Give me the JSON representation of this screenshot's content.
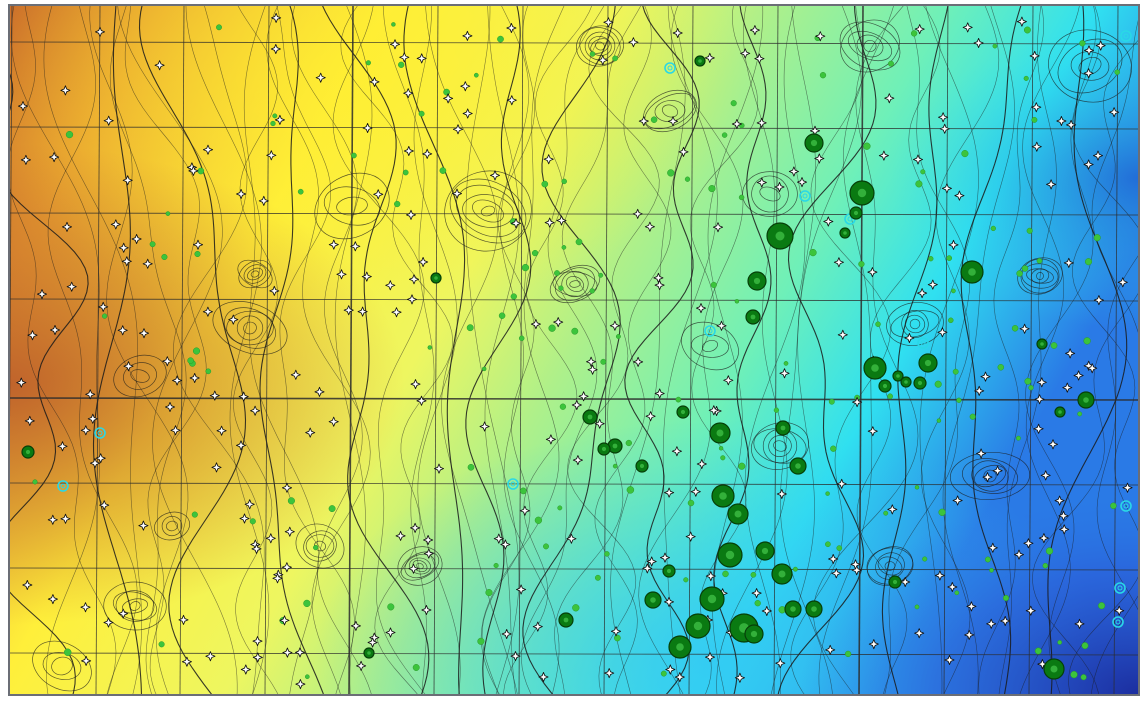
{
  "map": {
    "kind": "contour-bubble-map",
    "labels": [],
    "colors": {
      "frame": "#6b6e76",
      "grid_lines": "#2b2b2b",
      "contours": "#1a1a1a",
      "ramp_high": "#c8662a",
      "ramp_mid_high": "#ffef3a",
      "ramp_mid": "#aef08a",
      "ramp_mid_low": "#30e0f0",
      "ramp_low": "#1b2a9c",
      "bubble_fill": "#0a7a12",
      "small_marker": "#3cc43c",
      "highlight_ring": "#2ad8e6",
      "well_symbol": "#111111"
    },
    "symbols": [
      "dry-hole-icon",
      "producing-well-marker",
      "gas-show-ring"
    ]
  }
}
